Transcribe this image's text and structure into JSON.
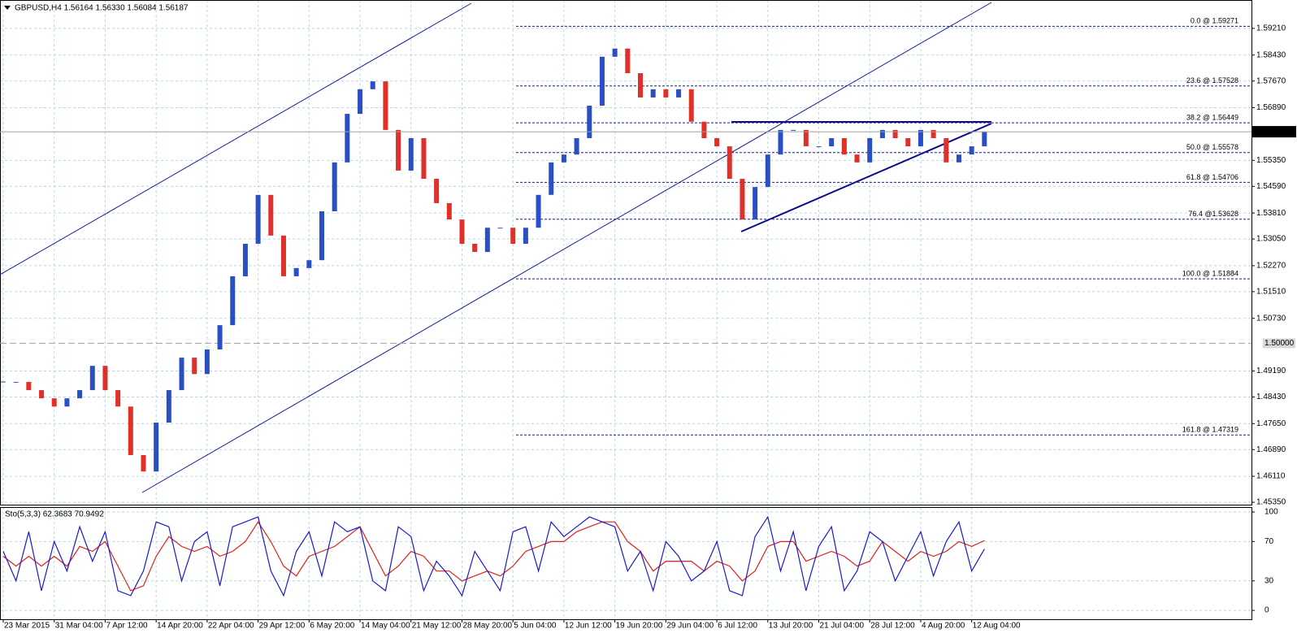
{
  "chart_data": [
    {
      "type": "bar",
      "title": "GBPUSD,H4  1.56164 1.56330 1.56084 1.56187",
      "categories": [
        "23 Mar 2015",
        null,
        null,
        null,
        "31 Mar 04:00",
        null,
        null,
        null,
        "7 Apr 12:00",
        null,
        null,
        null,
        "14 Apr 20:00",
        null,
        null,
        null,
        "22 Apr 04:00",
        null,
        null,
        null,
        "29 Apr 12:00",
        null,
        null,
        null,
        "6 May 20:00",
        null,
        null,
        null,
        "14 May 04:00",
        null,
        null,
        null,
        "21 May 12:00",
        null,
        null,
        null,
        "28 May 20:00",
        null,
        null,
        null,
        "5 Jun 04:00",
        null,
        null,
        null,
        "12 Jun 12:00",
        null,
        null,
        null,
        "19 Jun 20:00",
        null,
        null,
        null,
        "29 Jun 04:00",
        null,
        null,
        null,
        "6 Jul 12:00",
        null,
        null,
        null,
        "13 Jul 20:00",
        null,
        null,
        null,
        "21 Jul 04:00",
        null,
        null,
        null,
        "28 Jul 12:00",
        null,
        null,
        null,
        "4 Aug 20:00",
        null,
        null,
        null,
        "12 Aug 04:00",
        null
      ],
      "values": [
        1.4887,
        1.4887,
        1.4863,
        1.4839,
        1.4815,
        1.4839,
        1.4863,
        1.4934,
        1.4863,
        1.4815,
        1.4673,
        1.4625,
        1.4768,
        1.4863,
        1.4958,
        1.491,
        1.4982,
        1.5053,
        1.5196,
        1.5291,
        1.5434,
        1.5315,
        1.5196,
        1.522,
        1.5243,
        1.5386,
        1.5529,
        1.5671,
        1.5743,
        1.5766,
        1.5624,
        1.5505,
        1.56,
        1.5481,
        1.541,
        1.5362,
        1.5291,
        1.5267,
        1.5338,
        1.5338,
        1.5291,
        1.5338,
        1.5434,
        1.5529,
        1.5552,
        1.56,
        1.5695,
        1.5838,
        1.5862,
        1.579,
        1.5719,
        1.5743,
        1.5719,
        1.5743,
        1.5648,
        1.56,
        1.5576,
        1.5481,
        1.5362,
        1.5457,
        1.5552,
        1.5624,
        1.5624,
        1.5576,
        1.5576,
        1.56,
        1.5552,
        1.5529,
        1.56,
        1.5624,
        1.56,
        1.5576,
        1.5624,
        1.56,
        1.5529,
        1.5552,
        1.5576,
        1.5619
      ],
      "up_color": "#2a4fc4",
      "down_color": "#e0302a",
      "ylim": [
        1.4528,
        1.6004
      ],
      "yticks": [
        {
          "value": 1.5921,
          "label": "1.59210"
        },
        {
          "value": 1.5843,
          "label": "1.58430"
        },
        {
          "value": 1.5767,
          "label": "1.57670"
        },
        {
          "value": 1.5689,
          "label": "1.56890"
        },
        {
          "value": 1.5535,
          "label": "1.55350"
        },
        {
          "value": 1.5459,
          "label": "1.54590"
        },
        {
          "value": 1.5381,
          "label": "1.53810"
        },
        {
          "value": 1.5305,
          "label": "1.53050"
        },
        {
          "value": 1.5227,
          "label": "1.52270"
        },
        {
          "value": 1.5151,
          "label": "1.51510"
        },
        {
          "value": 1.5073,
          "label": "1.50730"
        },
        {
          "value": 1.4919,
          "label": "1.49190"
        },
        {
          "value": 1.4843,
          "label": "1.48430"
        },
        {
          "value": 1.4765,
          "label": "1.47650"
        },
        {
          "value": 1.4689,
          "label": "1.46890"
        },
        {
          "value": 1.4611,
          "label": "1.46110"
        },
        {
          "value": 1.4535,
          "label": "1.45350"
        }
      ],
      "grid": true,
      "fib_levels": [
        {
          "value": 1.59271,
          "label": "0.0 @ 1.59271"
        },
        {
          "value": 1.57528,
          "label": "23.6 @ 1.57528"
        },
        {
          "value": 1.56449,
          "label": "38.2 @ 1.56449"
        },
        {
          "value": 1.55578,
          "label": "50.0 @ 1.55578"
        },
        {
          "value": 1.54706,
          "label": "61.8 @ 1.54706"
        },
        {
          "value": 1.53628,
          "label": "76.4 @1.53628"
        },
        {
          "value": 1.51884,
          "label": "100.0 @ 1.51884"
        },
        {
          "value": 1.47319,
          "label": "161.8 @ 1.47319"
        }
      ],
      "level_line": {
        "value": 1.5,
        "label": "1.50000"
      },
      "last_price": 1.56187
    },
    {
      "type": "line",
      "title": "Sto(5,3,3) 62.3683 70.9492",
      "series": [
        {
          "color": "#1a1ad0",
          "values": [
            60,
            30,
            80,
            20,
            70,
            40,
            85,
            50,
            80,
            20,
            15,
            40,
            90,
            85,
            30,
            70,
            80,
            25,
            85,
            90,
            95,
            40,
            15,
            60,
            80,
            35,
            90,
            80,
            85,
            30,
            20,
            85,
            75,
            20,
            50,
            35,
            15,
            60,
            40,
            20,
            80,
            85,
            40,
            90,
            75,
            85,
            95,
            90,
            85,
            40,
            60,
            20,
            70,
            55,
            30,
            40,
            70,
            20,
            15,
            75,
            95,
            40,
            80,
            20,
            65,
            85,
            20,
            40,
            80,
            70,
            30,
            55,
            80,
            35,
            70,
            90,
            40,
            62.3683
          ]
        },
        {
          "color": "#e02020",
          "values": [
            55,
            45,
            55,
            45,
            55,
            45,
            65,
            60,
            70,
            45,
            20,
            25,
            55,
            75,
            65,
            60,
            65,
            55,
            60,
            70,
            90,
            70,
            45,
            35,
            55,
            60,
            65,
            75,
            85,
            60,
            35,
            45,
            60,
            55,
            40,
            40,
            30,
            35,
            40,
            35,
            45,
            60,
            65,
            70,
            70,
            80,
            85,
            90,
            90,
            70,
            60,
            40,
            50,
            50,
            50,
            40,
            50,
            45,
            30,
            40,
            65,
            70,
            70,
            50,
            55,
            60,
            55,
            45,
            50,
            70,
            60,
            50,
            60,
            55,
            60,
            70,
            65,
            70.9492
          ]
        }
      ],
      "ylim": [
        -9,
        105
      ],
      "yticks": [
        0,
        30,
        70,
        100
      ]
    }
  ]
}
